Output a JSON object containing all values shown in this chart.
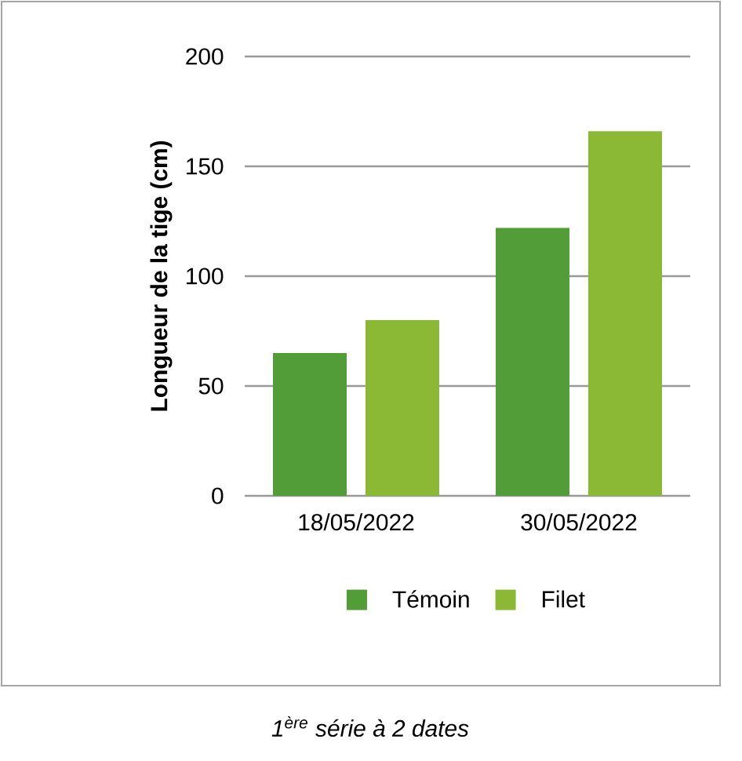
{
  "chart_data": {
    "type": "bar",
    "ylabel": "Longueur de la tige (cm)",
    "categories": [
      "18/05/2022",
      "30/05/2022"
    ],
    "series": [
      {
        "name": "Témoin",
        "color": "#539d39",
        "values": [
          65,
          122
        ]
      },
      {
        "name": "Filet",
        "color": "#8bb835",
        "values": [
          80,
          166
        ]
      }
    ],
    "ylim": [
      0,
      200
    ],
    "yticks": [
      0,
      50,
      100,
      150,
      200
    ],
    "grid": "y",
    "legend": "bottom",
    "annotations": [
      "*1$^{ère}$ série à 2  dates*"
    ]
  }
}
